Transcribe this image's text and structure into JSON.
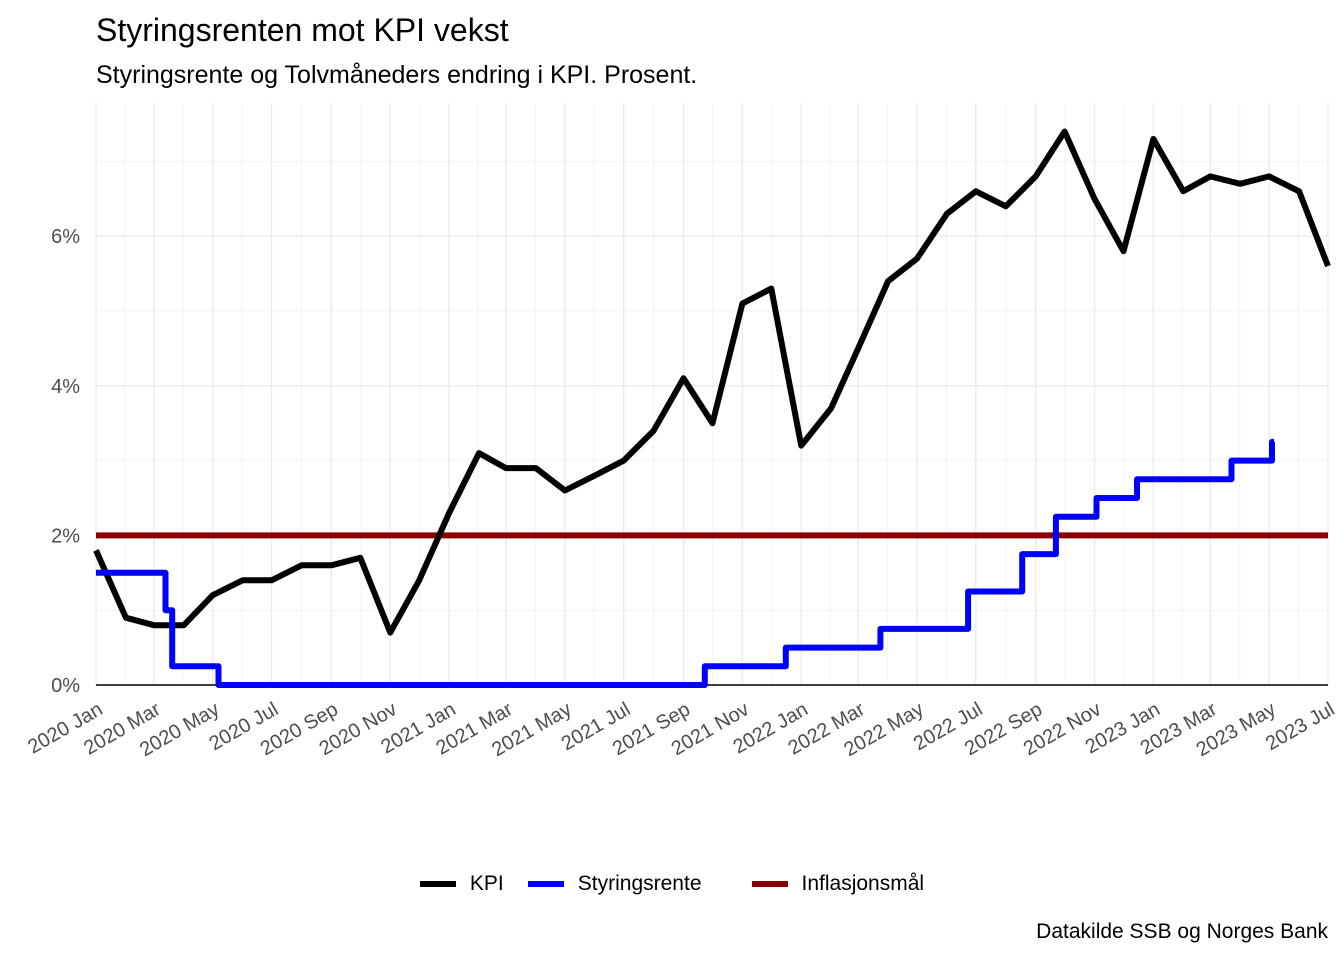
{
  "title": "Styringsrenten mot KPI vekst",
  "subtitle": "Styringsrente og Tolvmåneders endring i KPI. Prosent.",
  "caption": "Datakilde SSB og Norges Bank",
  "colors": {
    "kpi": "#000000",
    "styringsrente": "#0000ff",
    "inflasjonsmal": "#8b0000",
    "grid": "#ebebeb",
    "axis_text": "#4d4d4d"
  },
  "chart_data": {
    "type": "line",
    "title": "Styringsrenten mot KPI vekst",
    "subtitle": "Styringsrente og Tolvmåneders endring i KPI. Prosent.",
    "xlim": [
      "2020-01-01",
      "2023-07-01"
    ],
    "ylim": [
      0,
      7.5
    ],
    "y_ticks": [
      {
        "value": 0,
        "label": "0%"
      },
      {
        "value": 2,
        "label": "2%"
      },
      {
        "value": 4,
        "label": "4%"
      },
      {
        "value": 6,
        "label": "6%"
      }
    ],
    "x_ticks": [
      {
        "date": "2020-01-01",
        "label": "2020 Jan"
      },
      {
        "date": "2020-03-01",
        "label": "2020 Mar"
      },
      {
        "date": "2020-05-01",
        "label": "2020 May"
      },
      {
        "date": "2020-07-01",
        "label": "2020 Jul"
      },
      {
        "date": "2020-09-01",
        "label": "2020 Sep"
      },
      {
        "date": "2020-11-01",
        "label": "2020 Nov"
      },
      {
        "date": "2021-01-01",
        "label": "2021 Jan"
      },
      {
        "date": "2021-03-01",
        "label": "2021 Mar"
      },
      {
        "date": "2021-05-01",
        "label": "2021 May"
      },
      {
        "date": "2021-07-01",
        "label": "2021 Jul"
      },
      {
        "date": "2021-09-01",
        "label": "2021 Sep"
      },
      {
        "date": "2021-11-01",
        "label": "2021 Nov"
      },
      {
        "date": "2022-01-01",
        "label": "2022 Jan"
      },
      {
        "date": "2022-03-01",
        "label": "2022 Mar"
      },
      {
        "date": "2022-05-01",
        "label": "2022 May"
      },
      {
        "date": "2022-07-01",
        "label": "2022 Jul"
      },
      {
        "date": "2022-09-01",
        "label": "2022 Sep"
      },
      {
        "date": "2022-11-01",
        "label": "2022 Nov"
      },
      {
        "date": "2023-01-01",
        "label": "2023 Jan"
      },
      {
        "date": "2023-03-01",
        "label": "2023 Mar"
      },
      {
        "date": "2023-05-01",
        "label": "2023 May"
      },
      {
        "date": "2023-07-01",
        "label": "2023 Jul"
      }
    ],
    "grid": true,
    "legend_position": "bottom",
    "series": [
      {
        "name": "KPI",
        "step": false,
        "x": [
          "2020-01-01",
          "2020-02-01",
          "2020-03-01",
          "2020-04-01",
          "2020-05-01",
          "2020-06-01",
          "2020-07-01",
          "2020-08-01",
          "2020-09-01",
          "2020-10-01",
          "2020-11-01",
          "2020-12-01",
          "2021-01-01",
          "2021-02-01",
          "2021-03-01",
          "2021-04-01",
          "2021-05-01",
          "2021-06-01",
          "2021-07-01",
          "2021-08-01",
          "2021-09-01",
          "2021-10-01",
          "2021-11-01",
          "2021-12-01",
          "2022-01-01",
          "2022-02-01",
          "2022-03-01",
          "2022-04-01",
          "2022-05-01",
          "2022-06-01",
          "2022-07-01",
          "2022-08-01",
          "2022-09-01",
          "2022-10-01",
          "2022-11-01",
          "2022-12-01",
          "2023-01-01",
          "2023-02-01",
          "2023-03-01",
          "2023-04-01",
          "2023-05-01",
          "2023-06-01",
          "2023-07-01"
        ],
        "y": [
          1.8,
          0.9,
          0.8,
          0.8,
          1.2,
          1.4,
          1.4,
          1.6,
          1.6,
          1.7,
          0.7,
          1.4,
          2.3,
          3.1,
          2.9,
          2.9,
          2.6,
          2.8,
          3.0,
          3.4,
          4.1,
          3.5,
          5.1,
          5.3,
          3.2,
          3.7,
          4.5,
          5.4,
          5.7,
          6.3,
          6.6,
          6.4,
          6.8,
          7.4,
          6.5,
          5.8,
          7.3,
          6.6,
          6.8,
          6.7,
          6.8,
          6.6,
          5.6
        ]
      },
      {
        "name": "Styringsrente",
        "step": true,
        "x": [
          "2020-01-01",
          "2020-03-13",
          "2020-03-20",
          "2020-05-07",
          "2021-09-23",
          "2021-12-16",
          "2022-03-24",
          "2022-06-23",
          "2022-08-18",
          "2022-09-22",
          "2022-11-03",
          "2022-12-15",
          "2023-03-23",
          "2023-05-04",
          "2023-05-06"
        ],
        "y": [
          1.5,
          1.0,
          0.25,
          0.0,
          0.25,
          0.5,
          0.75,
          1.25,
          1.75,
          2.25,
          2.5,
          2.75,
          3.0,
          3.25,
          3.25
        ]
      },
      {
        "name": "Inflasjonsmål",
        "step": false,
        "x": [
          "2020-01-01",
          "2023-07-01"
        ],
        "y": [
          2,
          2
        ]
      }
    ]
  },
  "legend": [
    {
      "label": "KPI",
      "color": "#000000"
    },
    {
      "label": "Styringsrente",
      "color": "#0000ff"
    },
    {
      "label": "Inflasjonsmål",
      "color": "#8b0000"
    }
  ]
}
